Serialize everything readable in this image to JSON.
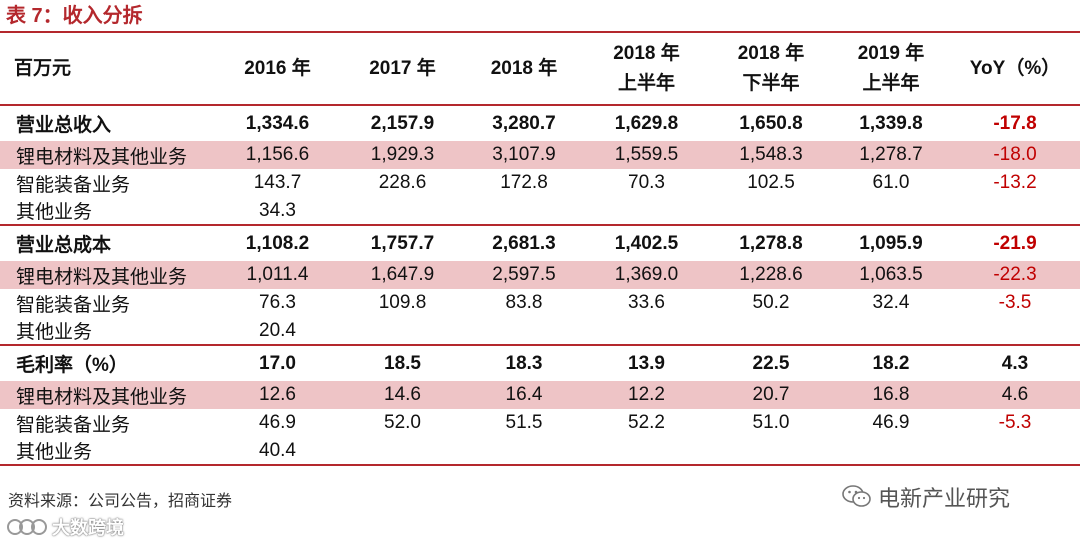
{
  "title": "表 7：收入分拆",
  "table": {
    "headers": [
      {
        "line1": "百万元",
        "line2": ""
      },
      {
        "line1": "2016 年",
        "line2": ""
      },
      {
        "line1": "2017 年",
        "line2": ""
      },
      {
        "line1": "2018 年",
        "line2": ""
      },
      {
        "line1": "2018 年",
        "line2": "上半年"
      },
      {
        "line1": "2018 年",
        "line2": "下半年"
      },
      {
        "line1": "2019 年",
        "line2": "上半年"
      },
      {
        "line1": "YoY（%）",
        "line2": ""
      }
    ],
    "sections": [
      {
        "total": {
          "label": "营业总收入",
          "values": [
            "1,334.6",
            "2,157.9",
            "3,280.7",
            "1,629.8",
            "1,650.8",
            "1,339.8",
            "-17.8"
          ]
        },
        "rows": [
          {
            "label": "锂电材料及其他业务",
            "values": [
              "1,156.6",
              "1,929.3",
              "3,107.9",
              "1,559.5",
              "1,548.3",
              "1,278.7",
              "-18.0"
            ]
          },
          {
            "label": "智能装备业务",
            "values": [
              "143.7",
              "228.6",
              "172.8",
              "70.3",
              "102.5",
              "61.0",
              "-13.2"
            ]
          },
          {
            "label": "其他业务",
            "values": [
              "34.3",
              "",
              "",
              "",
              "",
              "",
              ""
            ]
          }
        ]
      },
      {
        "total": {
          "label": "营业总成本",
          "values": [
            "1,108.2",
            "1,757.7",
            "2,681.3",
            "1,402.5",
            "1,278.8",
            "1,095.9",
            "-21.9"
          ]
        },
        "rows": [
          {
            "label": "锂电材料及其他业务",
            "values": [
              "1,011.4",
              "1,647.9",
              "2,597.5",
              "1,369.0",
              "1,228.6",
              "1,063.5",
              "-22.3"
            ]
          },
          {
            "label": "智能装备业务",
            "values": [
              "76.3",
              "109.8",
              "83.8",
              "33.6",
              "50.2",
              "32.4",
              "-3.5"
            ]
          },
          {
            "label": "其他业务",
            "values": [
              "20.4",
              "",
              "",
              "",
              "",
              "",
              ""
            ]
          }
        ]
      },
      {
        "total": {
          "label": "毛利率（%）",
          "values": [
            "17.0",
            "18.5",
            "18.3",
            "13.9",
            "22.5",
            "18.2",
            "4.3"
          ]
        },
        "rows": [
          {
            "label": "锂电材料及其他业务",
            "values": [
              "12.6",
              "14.6",
              "16.4",
              "12.2",
              "20.7",
              "16.8",
              "4.6"
            ]
          },
          {
            "label": "智能装备业务",
            "values": [
              "46.9",
              "52.0",
              "51.5",
              "52.2",
              "51.0",
              "46.9",
              "-5.3"
            ]
          },
          {
            "label": "其他业务",
            "values": [
              "40.4",
              "",
              "",
              "",
              "",
              "",
              ""
            ]
          }
        ]
      }
    ]
  },
  "source": "资料来源：公司公告，招商证券",
  "watermark_right": "电新产业研究",
  "watermark_left": "大数跨境",
  "colors": {
    "accent": "#b4282d",
    "highlight_row": "#eec4c6",
    "negative_yoy": "#c00000"
  }
}
